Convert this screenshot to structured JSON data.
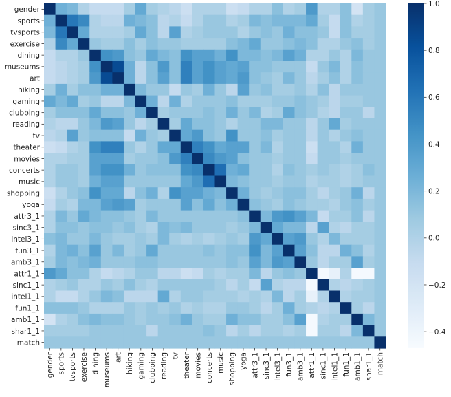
{
  "chart_data": {
    "type": "heatmap",
    "title": "",
    "labels": [
      "gender",
      "sports",
      "tvsports",
      "exercise",
      "dining",
      "museums",
      "art",
      "hiking",
      "gaming",
      "clubbing",
      "reading",
      "tv",
      "theater",
      "movies",
      "concerts",
      "music",
      "shopping",
      "yoga",
      "attr3_1",
      "sinc3_1",
      "intel3_1",
      "fun3_1",
      "amb3_1",
      "attr1_1",
      "sinc1_1",
      "intel1_1",
      "fun1_1",
      "amb1_1",
      "shar1_1",
      "match"
    ],
    "symmetric": true,
    "lower_triangle": [
      [
        1
      ],
      [
        0.25,
        1
      ],
      [
        0.2,
        0.6,
        1
      ],
      [
        0,
        0.5,
        0.3,
        1
      ],
      [
        -0.1,
        0,
        0,
        0.1,
        1
      ],
      [
        -0.1,
        -0.05,
        0,
        0.05,
        0.45,
        1
      ],
      [
        -0.1,
        -0.05,
        0,
        0.05,
        0.4,
        0.85,
        1
      ],
      [
        0.05,
        0.25,
        0.05,
        0.15,
        0.15,
        0.25,
        0.25,
        1
      ],
      [
        0.3,
        0.2,
        0.3,
        0.05,
        0.1,
        -0.05,
        -0.05,
        0.2,
        1
      ],
      [
        0.05,
        0.15,
        0.15,
        0.15,
        0.3,
        0.15,
        0.15,
        0.1,
        0.25,
        1
      ],
      [
        0,
        -0.05,
        -0.05,
        0.1,
        0.2,
        0.4,
        0.35,
        0.1,
        -0.05,
        0.05,
        1
      ],
      [
        -0.05,
        0,
        0.35,
        0.1,
        0.15,
        0.15,
        0.15,
        -0.1,
        0.25,
        0.1,
        0.05,
        1
      ],
      [
        -0.15,
        -0.1,
        0,
        0.05,
        0.45,
        0.55,
        0.55,
        0.1,
        0,
        0.1,
        0.3,
        0.3,
        1
      ],
      [
        0,
        0,
        0.05,
        0.05,
        0.35,
        0.35,
        0.35,
        0.05,
        0.1,
        0.1,
        0.15,
        0.4,
        0.55,
        1
      ],
      [
        0,
        0.1,
        0.1,
        0.05,
        0.35,
        0.45,
        0.45,
        0.25,
        0.1,
        0.15,
        0.15,
        0.15,
        0.45,
        0.5,
        1
      ],
      [
        0,
        0.1,
        0.1,
        0.05,
        0.25,
        0.35,
        0.35,
        0.1,
        0.1,
        0.1,
        0.1,
        0.1,
        0.3,
        0.4,
        0.65,
        1
      ],
      [
        -0.15,
        0,
        0.1,
        0.15,
        0.45,
        0.3,
        0.3,
        -0.05,
        0.15,
        0.25,
        0,
        0.45,
        0.35,
        0.35,
        0.25,
        0.2,
        1
      ],
      [
        -0.1,
        0.05,
        0,
        0.2,
        0.2,
        0.35,
        0.4,
        0.35,
        0.05,
        0.1,
        0.1,
        0.1,
        0.35,
        0.15,
        0.3,
        0.15,
        0.25,
        1
      ],
      [
        0,
        0.2,
        0.1,
        0.3,
        0.2,
        0.15,
        0.15,
        0.1,
        0.05,
        0.2,
        0.1,
        0.1,
        0.1,
        0.1,
        0.1,
        0.1,
        0.1,
        0.15,
        1
      ],
      [
        0,
        0.15,
        0.15,
        0.1,
        0.15,
        0.15,
        0.1,
        0.15,
        0.05,
        0,
        0.2,
        0.15,
        0.2,
        0.1,
        0.1,
        0.1,
        0.05,
        0.1,
        0.2,
        1
      ],
      [
        0.15,
        0.2,
        0.1,
        0.1,
        0.2,
        0.1,
        0.05,
        0.05,
        0.1,
        0.05,
        0.2,
        0.05,
        0,
        0.05,
        0,
        0.05,
        0.1,
        0.05,
        0.4,
        0.3,
        1
      ],
      [
        0,
        0.2,
        0.25,
        0.15,
        0.35,
        0.1,
        0.2,
        0.05,
        0.1,
        0.3,
        0.1,
        0.1,
        0.1,
        0.1,
        0.15,
        0.1,
        0.15,
        0.15,
        0.45,
        0.2,
        0.35,
        1
      ],
      [
        0.05,
        0.2,
        0.15,
        0.2,
        0.25,
        0.1,
        0.1,
        0.1,
        0.15,
        0.15,
        0.1,
        0.1,
        0.1,
        0.1,
        0.1,
        0.1,
        0.15,
        0.1,
        0.35,
        0.2,
        0.4,
        0.35,
        1
      ],
      [
        0.4,
        0.3,
        0.15,
        0.15,
        0,
        -0.1,
        -0.05,
        0,
        0.1,
        0.1,
        -0.05,
        -0.05,
        -0.15,
        -0.1,
        0.05,
        0,
        0.05,
        0.05,
        0.2,
        -0.05,
        0.1,
        0.15,
        0.1,
        1
      ],
      [
        0,
        0.05,
        0.1,
        0,
        0,
        0.1,
        0.05,
        0.15,
        0.05,
        0,
        0.1,
        0.1,
        0.1,
        0.1,
        0.1,
        0.05,
        -0.05,
        0.05,
        -0.1,
        0.35,
        0,
        -0.05,
        -0.05,
        -0.45,
        1
      ],
      [
        0,
        -0.1,
        -0.1,
        0,
        0.1,
        0.2,
        0.15,
        -0.05,
        -0.05,
        -0.05,
        0.3,
        0,
        0.1,
        0.1,
        0.05,
        0.05,
        0.05,
        0,
        0.05,
        0,
        0.2,
        -0.05,
        0.05,
        -0.35,
        0,
        1
      ],
      [
        0.15,
        0.15,
        0.15,
        0.1,
        0,
        0,
        0,
        0.1,
        0.05,
        0.1,
        0.05,
        0.1,
        0,
        0.05,
        0,
        0,
        0.1,
        0.1,
        0.05,
        -0.05,
        0.05,
        0.25,
        0.05,
        0,
        -0.05,
        0,
        1
      ],
      [
        -0.2,
        0,
        0.05,
        0.15,
        0.2,
        0.15,
        0.15,
        0.1,
        0.05,
        0.1,
        0.1,
        0.15,
        0.25,
        0.1,
        0.05,
        0.05,
        0.25,
        0.15,
        0.15,
        0.05,
        0.05,
        0.15,
        0.35,
        -0.45,
        0,
        0.05,
        0.05,
        1
      ],
      [
        0.05,
        0.05,
        0.05,
        0.05,
        0.1,
        0.1,
        0.1,
        0.1,
        0.1,
        -0.05,
        0.1,
        0.1,
        0.1,
        0.1,
        0.15,
        0.1,
        -0.05,
        0.05,
        -0.05,
        0.05,
        0.05,
        0,
        0.05,
        -0.45,
        0.05,
        0.05,
        -0.05,
        0.2,
        1
      ],
      [
        0.1,
        0.1,
        0.1,
        0.1,
        0.1,
        0.1,
        0.1,
        0.1,
        0.1,
        0.1,
        0.1,
        0.1,
        0.1,
        0.1,
        0.1,
        0.1,
        0.1,
        0.1,
        0.1,
        0.1,
        0.1,
        0.1,
        0.1,
        0.1,
        0.1,
        0.1,
        0.1,
        0.1,
        0.1,
        1
      ]
    ],
    "colormap": "Blues",
    "vmin": -0.47,
    "vmax": 1.0,
    "colorbar_ticks": [
      1.0,
      0.8,
      0.6,
      0.4,
      0.2,
      0.0,
      -0.2,
      -0.4
    ],
    "colorbar_tick_labels": [
      "1.0",
      "0.8",
      "0.6",
      "0.4",
      "0.2",
      "0.0",
      "−0.2",
      "−0.4"
    ],
    "legend_placement": "right",
    "grid": false
  }
}
